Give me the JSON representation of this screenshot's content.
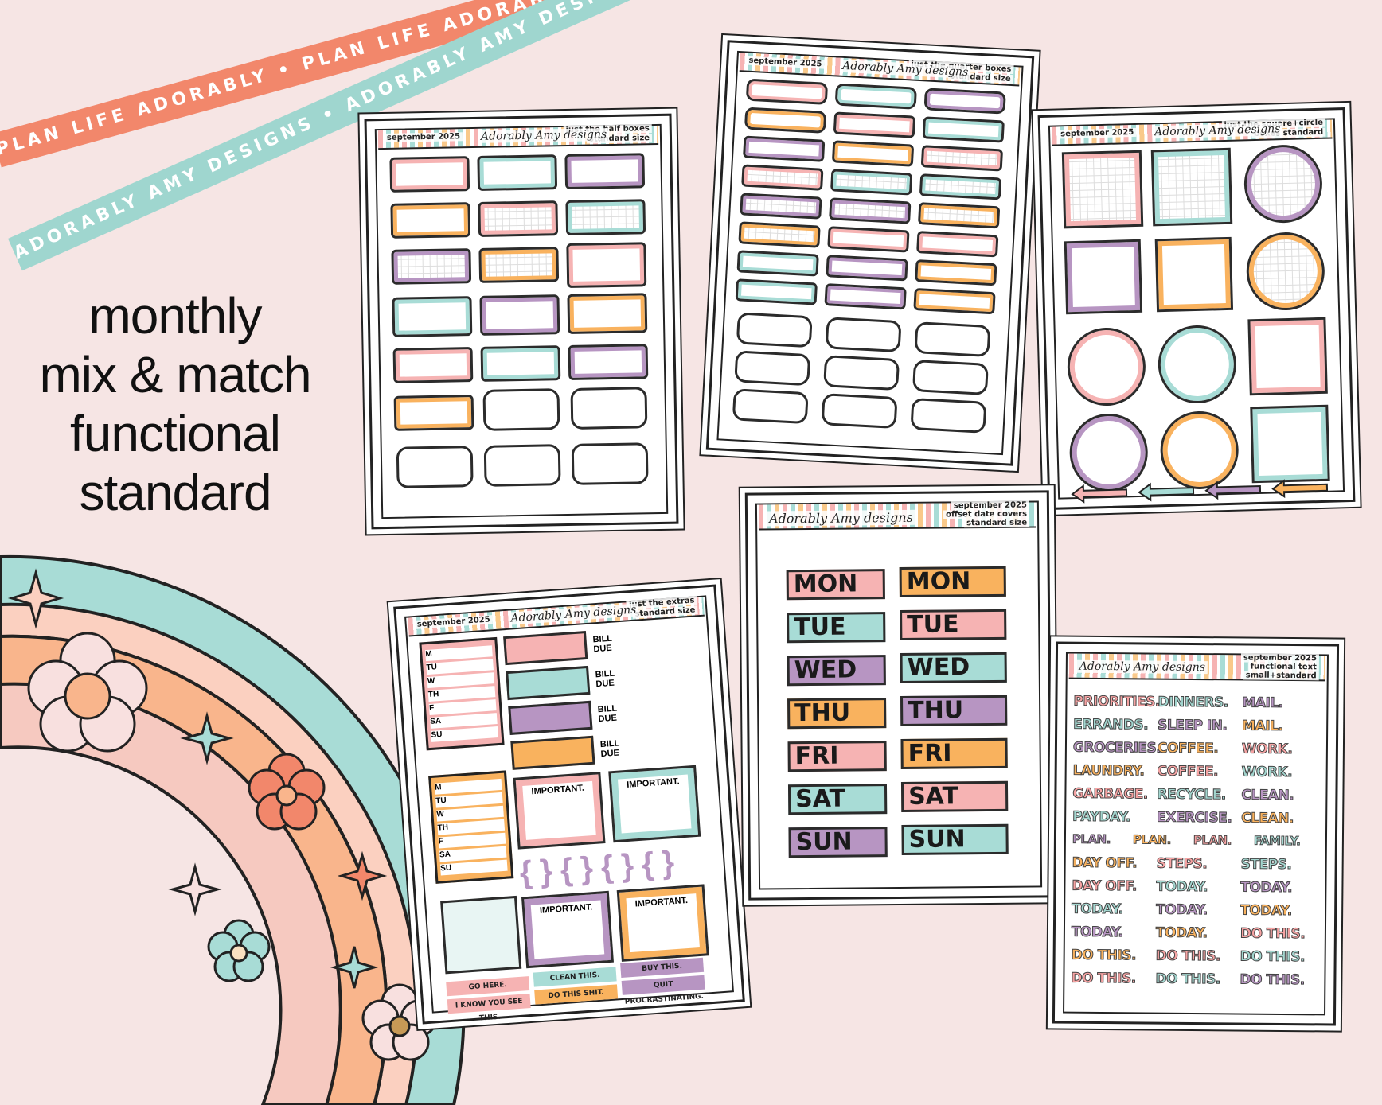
{
  "ribbons": {
    "coral_text": "PLAN LIFE ADORABLY • PLAN LIFE ADORABLY • PLAN LIFE ADORABLY",
    "teal_text": "ADORABLY AMY DESIGNS • ADORABLY AMY DESIGNS • ADORABLY AMY DESIGNS"
  },
  "headline": {
    "line1": "monthly",
    "line2": "mix & match",
    "line3": "functional",
    "line4": "standard"
  },
  "brand": {
    "logo": "Adorably Amy designs"
  },
  "colors": {
    "pink": "#f6b3b3",
    "teal": "#a8dcd6",
    "purple": "#b795c2",
    "orange": "#f9b25e",
    "coral": "#f2876b",
    "bg": "#f6e5e4"
  },
  "sheets": {
    "half": {
      "month": "september 2025",
      "title": "just the half boxes",
      "size": "standard size"
    },
    "quarter": {
      "month": "september 2025",
      "title": "just the quarter boxes",
      "size": "standard size"
    },
    "square": {
      "month": "september 2025",
      "title": "just the square+circle",
      "size": "boxes standard"
    },
    "extras": {
      "month": "september 2025",
      "title": "just the extras",
      "size": "standard size",
      "days": [
        "M",
        "TU",
        "W",
        "TH",
        "F",
        "SA",
        "SU"
      ],
      "bill_due": "BILL DUE",
      "important": "IMPORTANT.",
      "pills": [
        "GO HERE.",
        "CLEAN THIS.",
        "BUY THIS.",
        "I KNOW YOU SEE THIS.",
        "DO THIS SHIT.",
        "QUIT PROCRASTINATING."
      ]
    },
    "dates": {
      "title": "september 2025",
      "subtitle": "offset date covers",
      "size": "standard size",
      "days": [
        "MON",
        "TUE",
        "WED",
        "THU",
        "FRI",
        "SAT",
        "SUN"
      ]
    },
    "text": {
      "title": "september 2025",
      "subtitle": "functional text",
      "size": "small+standard",
      "rows": [
        [
          "PRIORITIES.",
          "DINNERS.",
          "MAIL."
        ],
        [
          "ERRANDS.",
          "SLEEP IN.",
          "MAIL."
        ],
        [
          "GROCERIES.",
          "COFFEE.",
          "WORK."
        ],
        [
          "LAUNDRY.",
          "COFFEE.",
          "WORK."
        ],
        [
          "GARBAGE.",
          "RECYCLE.",
          "CLEAN."
        ],
        [
          "PAYDAY.",
          "EXERCISE.",
          "CLEAN."
        ],
        [
          "PLAN.",
          "PLAN.",
          "PLAN.",
          "FAMILY."
        ],
        [
          "DAY OFF.",
          "STEPS.",
          "STEPS."
        ],
        [
          "DAY OFF.",
          "TODAY.",
          "TODAY."
        ],
        [
          "TODAY.",
          "TODAY.",
          "TODAY."
        ],
        [
          "TODAY.",
          "TODAY.",
          "DO THIS."
        ],
        [
          "DO THIS.",
          "DO THIS.",
          "DO THIS."
        ],
        [
          "DO THIS.",
          "DO THIS.",
          "DO THIS."
        ]
      ]
    }
  }
}
